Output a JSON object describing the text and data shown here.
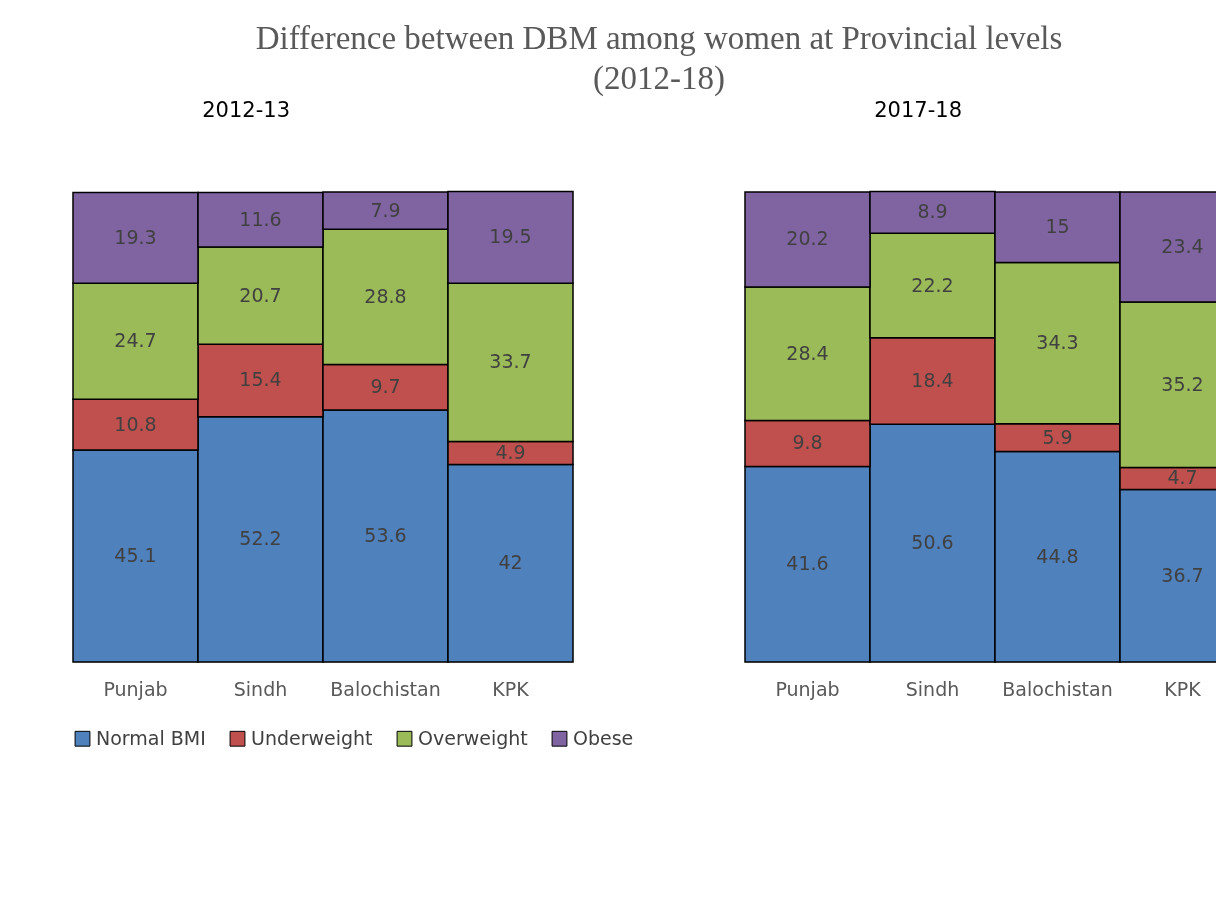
{
  "chart_data": [
    {
      "type": "bar",
      "title": "Difference between DBM among women at Provincial levels (2012-18)",
      "subtitle": "2012-13",
      "categories": [
        "Punjab",
        "Sindh",
        "Balochistan",
        "KPK"
      ],
      "stacked": true,
      "data_labels": true,
      "ylim": [
        0,
        100
      ],
      "tick_labels": "x",
      "legend": "bottom",
      "series": [
        {
          "name": "Normal BMI",
          "color": "#4f81bd",
          "values": [
            45.1,
            52.2,
            53.6,
            42
          ]
        },
        {
          "name": "Underweight",
          "color": "#c0504d",
          "values": [
            10.8,
            15.4,
            9.7,
            4.9
          ]
        },
        {
          "name": "Overweight",
          "color": "#9bbb59",
          "values": [
            24.7,
            20.7,
            28.8,
            33.7
          ]
        },
        {
          "name": "Obese",
          "color": "#8064a2",
          "values": [
            19.3,
            11.6,
            7.9,
            19.5
          ]
        }
      ]
    },
    {
      "type": "bar",
      "title": "2017-18",
      "categories": [
        "Punjab",
        "Sindh",
        "Balochistan",
        "KPK"
      ],
      "stacked": true,
      "data_labels": true,
      "ylim": [
        0,
        100
      ],
      "tick_labels": "x",
      "legend": false,
      "series": [
        {
          "color": "#4f81bd",
          "values": [
            41.6,
            50.6,
            44.8,
            36.7
          ]
        },
        {
          "color": "#c0504d",
          "values": [
            9.8,
            18.4,
            5.9,
            4.7
          ]
        },
        {
          "color": "#9bbb59",
          "values": [
            28.4,
            22.2,
            34.3,
            35.2
          ]
        },
        {
          "color": "#8064a2",
          "values": [
            20.2,
            8.9,
            15,
            23.4
          ]
        }
      ]
    }
  ]
}
